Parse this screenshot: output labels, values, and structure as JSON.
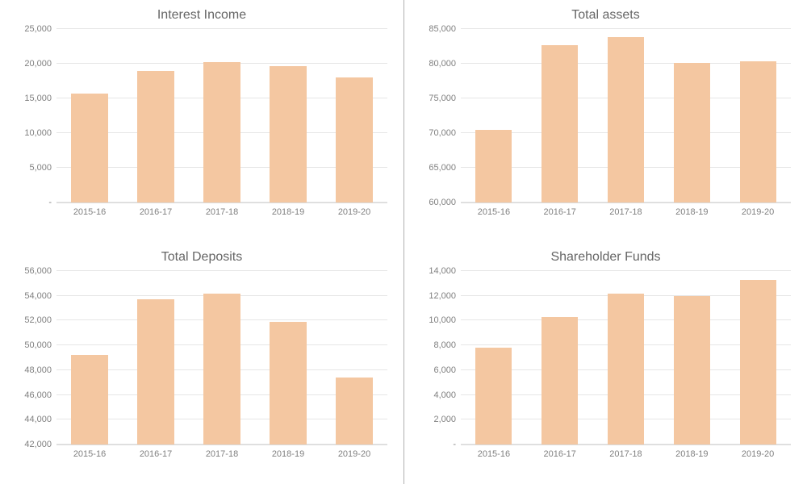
{
  "global": {
    "categories": [
      "2015-16",
      "2016-17",
      "2017-18",
      "2018-19",
      "2019-20"
    ],
    "bar_color": "#f4c7a1",
    "grid_color": "#e6e6e6",
    "axis_label_color": "#808080",
    "title_color": "#666666",
    "title_fontsize": 16,
    "label_fontsize": 11,
    "bar_width_ratio": 0.55
  },
  "charts": [
    {
      "key": "interest_income",
      "title": "Interest Income",
      "type": "bar",
      "ymin": 0,
      "ymax": 25000,
      "ystep": 5000,
      "values": [
        15700,
        19000,
        20200,
        19600,
        18000
      ],
      "ylabels": [
        "-",
        "5,000",
        "10,000",
        "15,000",
        "20,000",
        "25,000"
      ]
    },
    {
      "key": "total_assets",
      "title": "Total assets",
      "type": "bar",
      "ymin": 60000,
      "ymax": 85000,
      "ystep": 5000,
      "values": [
        70500,
        82700,
        83800,
        80100,
        80400
      ],
      "ylabels": [
        "60,000",
        "65,000",
        "70,000",
        "75,000",
        "80,000",
        "85,000"
      ]
    },
    {
      "key": "total_deposits",
      "title": "Total Deposits",
      "type": "bar",
      "ymin": 42000,
      "ymax": 56000,
      "ystep": 2000,
      "values": [
        49200,
        53700,
        54200,
        51900,
        47400
      ],
      "ylabels": [
        "42,000",
        "44,000",
        "46,000",
        "48,000",
        "50,000",
        "52,000",
        "54,000",
        "56,000"
      ]
    },
    {
      "key": "shareholder_funds",
      "title": "Shareholder Funds",
      "type": "bar",
      "ymin": 0,
      "ymax": 14000,
      "ystep": 2000,
      "values": [
        7800,
        10300,
        12200,
        12000,
        13300
      ],
      "ylabels": [
        "-",
        "2,000",
        "4,000",
        "6,000",
        "8,000",
        "10,000",
        "12,000",
        "14,000"
      ]
    }
  ]
}
